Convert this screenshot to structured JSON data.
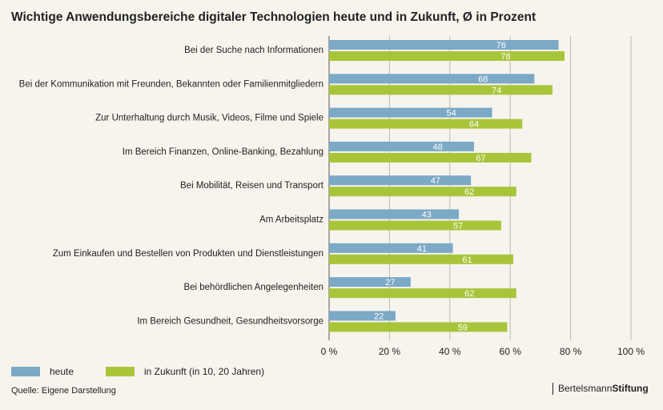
{
  "title": "Wichtige Anwendungsbereiche digitaler Technologien heute und in Zukunft, Ø in Prozent",
  "source": "Quelle: Eigene Darstellung",
  "brand": {
    "part1": "Bertelsmann",
    "part2": "Stiftung"
  },
  "colors": {
    "heute": "#7ba9c6",
    "zukunft": "#a8c53a",
    "background": "#f7f4ee",
    "grid": "#bdbab3"
  },
  "chart_data": {
    "type": "bar",
    "orientation": "horizontal",
    "categories": [
      "Bei der Suche nach Informationen",
      "Bei der Kommunikation mit Freunden, Bekannten oder Familienmitgliedern",
      "Zur Unterhaltung durch Musik, Videos, Filme und Spiele",
      "Im Bereich Finanzen, Online-Banking, Bezahlung",
      "Bei Mobilität, Reisen und Transport",
      "Am Arbeitsplatz",
      "Zum Einkaufen und Bestellen von Produkten und Dienstleistungen",
      "Bei behördlichen Angelegenheiten",
      "Im Bereich Gesundheit, Gesundheitsvorsorge"
    ],
    "series": [
      {
        "name": "heute",
        "values": [
          76,
          68,
          54,
          48,
          47,
          43,
          41,
          27,
          22
        ]
      },
      {
        "name": "in Zukunft (in 10, 20 Jahren)",
        "values": [
          78,
          74,
          64,
          67,
          62,
          57,
          61,
          62,
          59
        ]
      }
    ],
    "xlim": [
      0,
      100
    ],
    "xticks": [
      "0 %",
      "20 %",
      "40 %",
      "60 %",
      "80 %",
      "100 %"
    ],
    "grid": true,
    "legend_position": "bottom-left"
  }
}
